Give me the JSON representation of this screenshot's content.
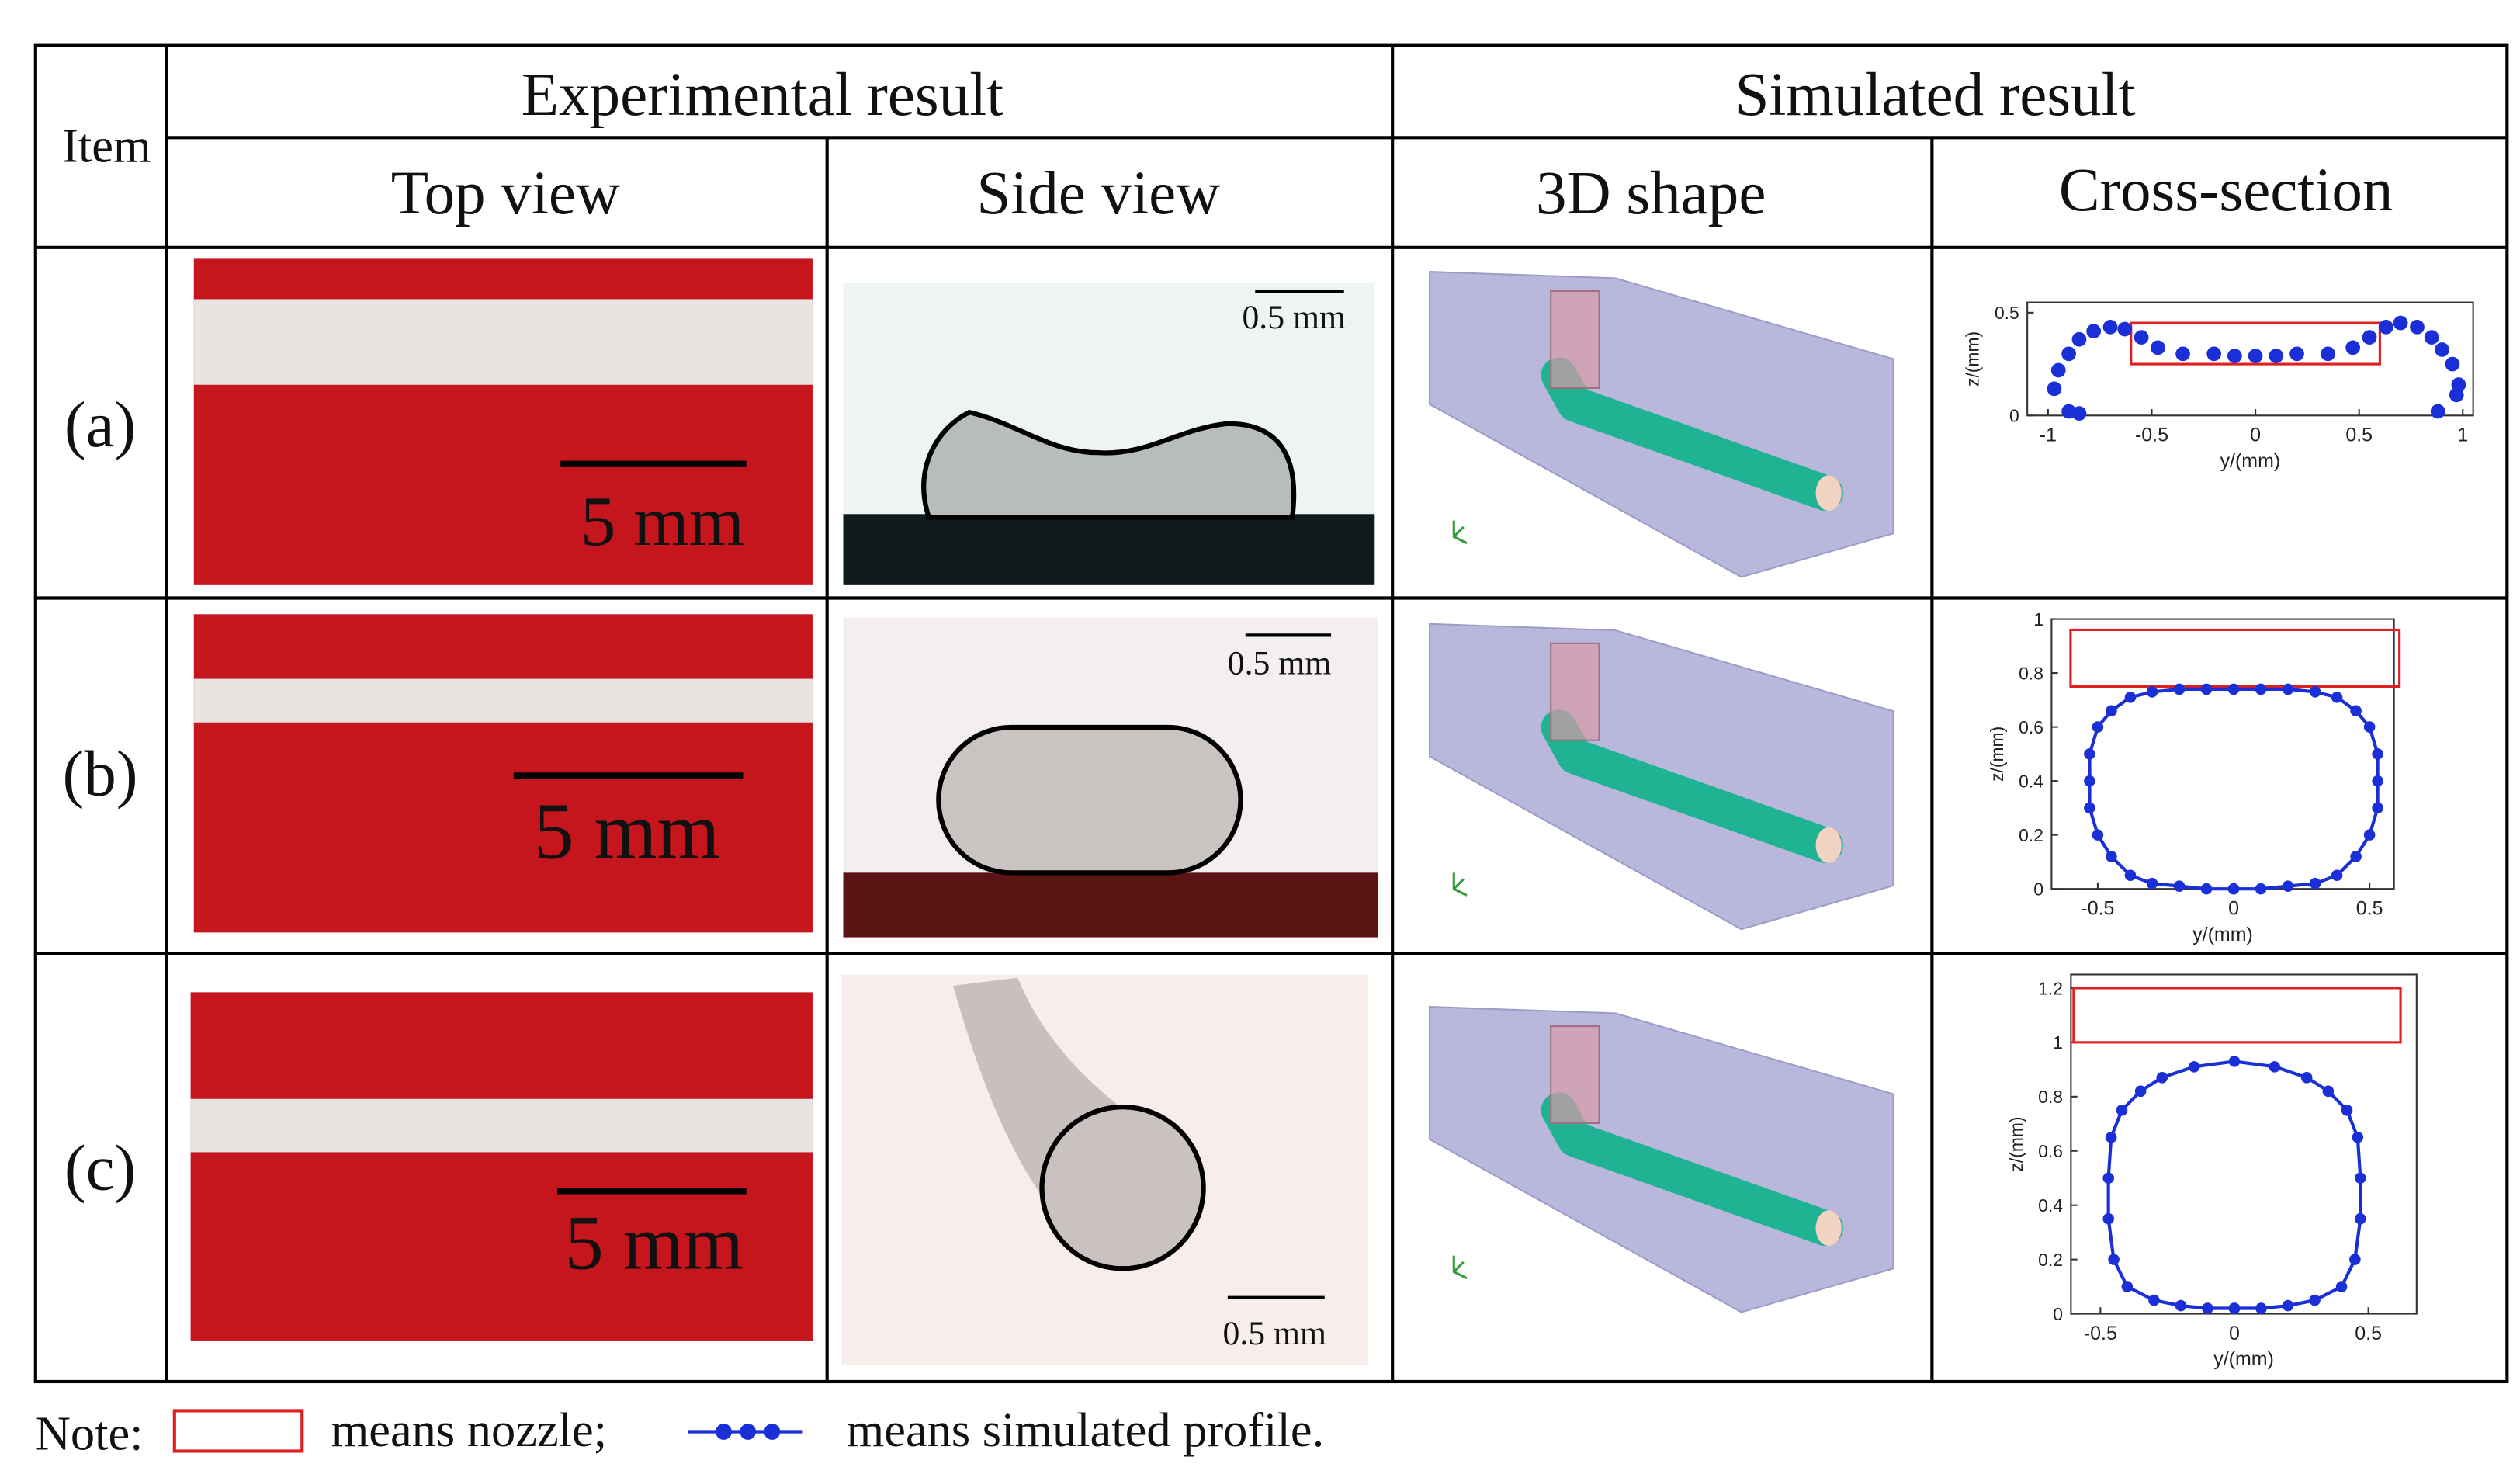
{
  "header": {
    "item": "Item",
    "experimental": "Experimental result",
    "simulated": "Simulated result",
    "columns": [
      "Top view",
      "Side view",
      "3D shape",
      "Cross-section"
    ]
  },
  "rows": [
    {
      "label": "(a)",
      "top_scale": "5 mm",
      "side_scale": "0.5 mm",
      "cross_section": {
        "xlabel": "y/(mm)",
        "ylabel": "z/(mm)",
        "xlim": [
          -1.1,
          1.05
        ],
        "ylim": [
          0,
          0.55
        ],
        "xticks": [
          -1,
          -0.5,
          0,
          0.5,
          1
        ],
        "yticks": [
          0,
          0.5
        ],
        "line": false,
        "nozzle": {
          "y": [
            -0.6,
            0.6
          ],
          "z": [
            0.25,
            0.45
          ]
        },
        "profile": {
          "y": [
            -0.97,
            -0.95,
            -0.9,
            -0.85,
            -0.78,
            -0.7,
            -0.63,
            -0.55,
            -0.47,
            -0.35,
            -0.2,
            -0.1,
            0,
            0.1,
            0.2,
            0.35,
            0.47,
            0.55,
            0.63,
            0.7,
            0.78,
            0.85,
            0.9,
            0.95,
            0.98,
            0.97,
            -0.9,
            -0.85,
            0.88
          ],
          "z": [
            0.13,
            0.22,
            0.3,
            0.37,
            0.41,
            0.43,
            0.42,
            0.38,
            0.33,
            0.3,
            0.3,
            0.29,
            0.29,
            0.29,
            0.3,
            0.3,
            0.33,
            0.38,
            0.43,
            0.45,
            0.43,
            0.38,
            0.32,
            0.25,
            0.15,
            0.1,
            0.02,
            0.01,
            0.02
          ]
        }
      }
    },
    {
      "label": "(b)",
      "top_scale": "5 mm",
      "side_scale": "0.5 mm",
      "cross_section": {
        "xlabel": "y/(mm)",
        "ylabel": "z/(mm)",
        "xlim": [
          -0.67,
          0.59
        ],
        "ylim": [
          0,
          1
        ],
        "xticks": [
          -0.5,
          0,
          0.5
        ],
        "yticks": [
          0,
          0.2,
          0.4,
          0.6,
          0.8,
          1
        ],
        "line": true,
        "nozzle": {
          "y": [
            -0.6,
            0.61
          ],
          "z": [
            0.75,
            0.96
          ]
        },
        "profile": {
          "y": [
            0,
            0.1,
            0.2,
            0.3,
            0.38,
            0.45,
            0.5,
            0.53,
            0.53,
            0.53,
            0.5,
            0.45,
            0.38,
            0.3,
            0.2,
            0.1,
            0,
            -0.1,
            -0.2,
            -0.3,
            -0.38,
            -0.45,
            -0.5,
            -0.53,
            -0.53,
            -0.53,
            -0.5,
            -0.45,
            -0.38,
            -0.3,
            -0.2,
            -0.1,
            0
          ],
          "z": [
            0,
            0,
            0.01,
            0.02,
            0.05,
            0.12,
            0.2,
            0.3,
            0.4,
            0.5,
            0.6,
            0.66,
            0.71,
            0.73,
            0.74,
            0.74,
            0.74,
            0.74,
            0.74,
            0.73,
            0.71,
            0.66,
            0.6,
            0.5,
            0.4,
            0.3,
            0.2,
            0.12,
            0.05,
            0.02,
            0.01,
            0,
            0
          ]
        }
      }
    },
    {
      "label": "(c)",
      "top_scale": "5 mm",
      "side_scale": "0.5 mm",
      "cross_section": {
        "xlabel": "y/(mm)",
        "ylabel": "z/(mm)",
        "xlim": [
          -0.61,
          0.68
        ],
        "ylim": [
          0,
          1.25
        ],
        "xticks": [
          -0.5,
          0,
          0.5
        ],
        "yticks": [
          0,
          0.2,
          0.4,
          0.6,
          0.8,
          1,
          1.2
        ],
        "line": true,
        "nozzle": {
          "y": [
            -0.6,
            0.62
          ],
          "z": [
            1,
            1.2
          ]
        },
        "profile": {
          "y": [
            0,
            0.1,
            0.2,
            0.3,
            0.4,
            0.45,
            0.47,
            0.47,
            0.46,
            0.42,
            0.35,
            0.27,
            0.15,
            0,
            -0.15,
            -0.27,
            -0.35,
            -0.42,
            -0.46,
            -0.47,
            -0.47,
            -0.45,
            -0.4,
            -0.3,
            -0.2,
            -0.1,
            0
          ],
          "z": [
            0.02,
            0.02,
            0.03,
            0.05,
            0.1,
            0.2,
            0.35,
            0.5,
            0.65,
            0.75,
            0.82,
            0.87,
            0.91,
            0.93,
            0.91,
            0.87,
            0.82,
            0.75,
            0.65,
            0.5,
            0.35,
            0.2,
            0.1,
            0.05,
            0.03,
            0.02,
            0.02
          ]
        }
      }
    }
  ],
  "note": {
    "prefix": "Note:",
    "nozzle": "means nozzle;",
    "profile": "means simulated profile."
  }
}
